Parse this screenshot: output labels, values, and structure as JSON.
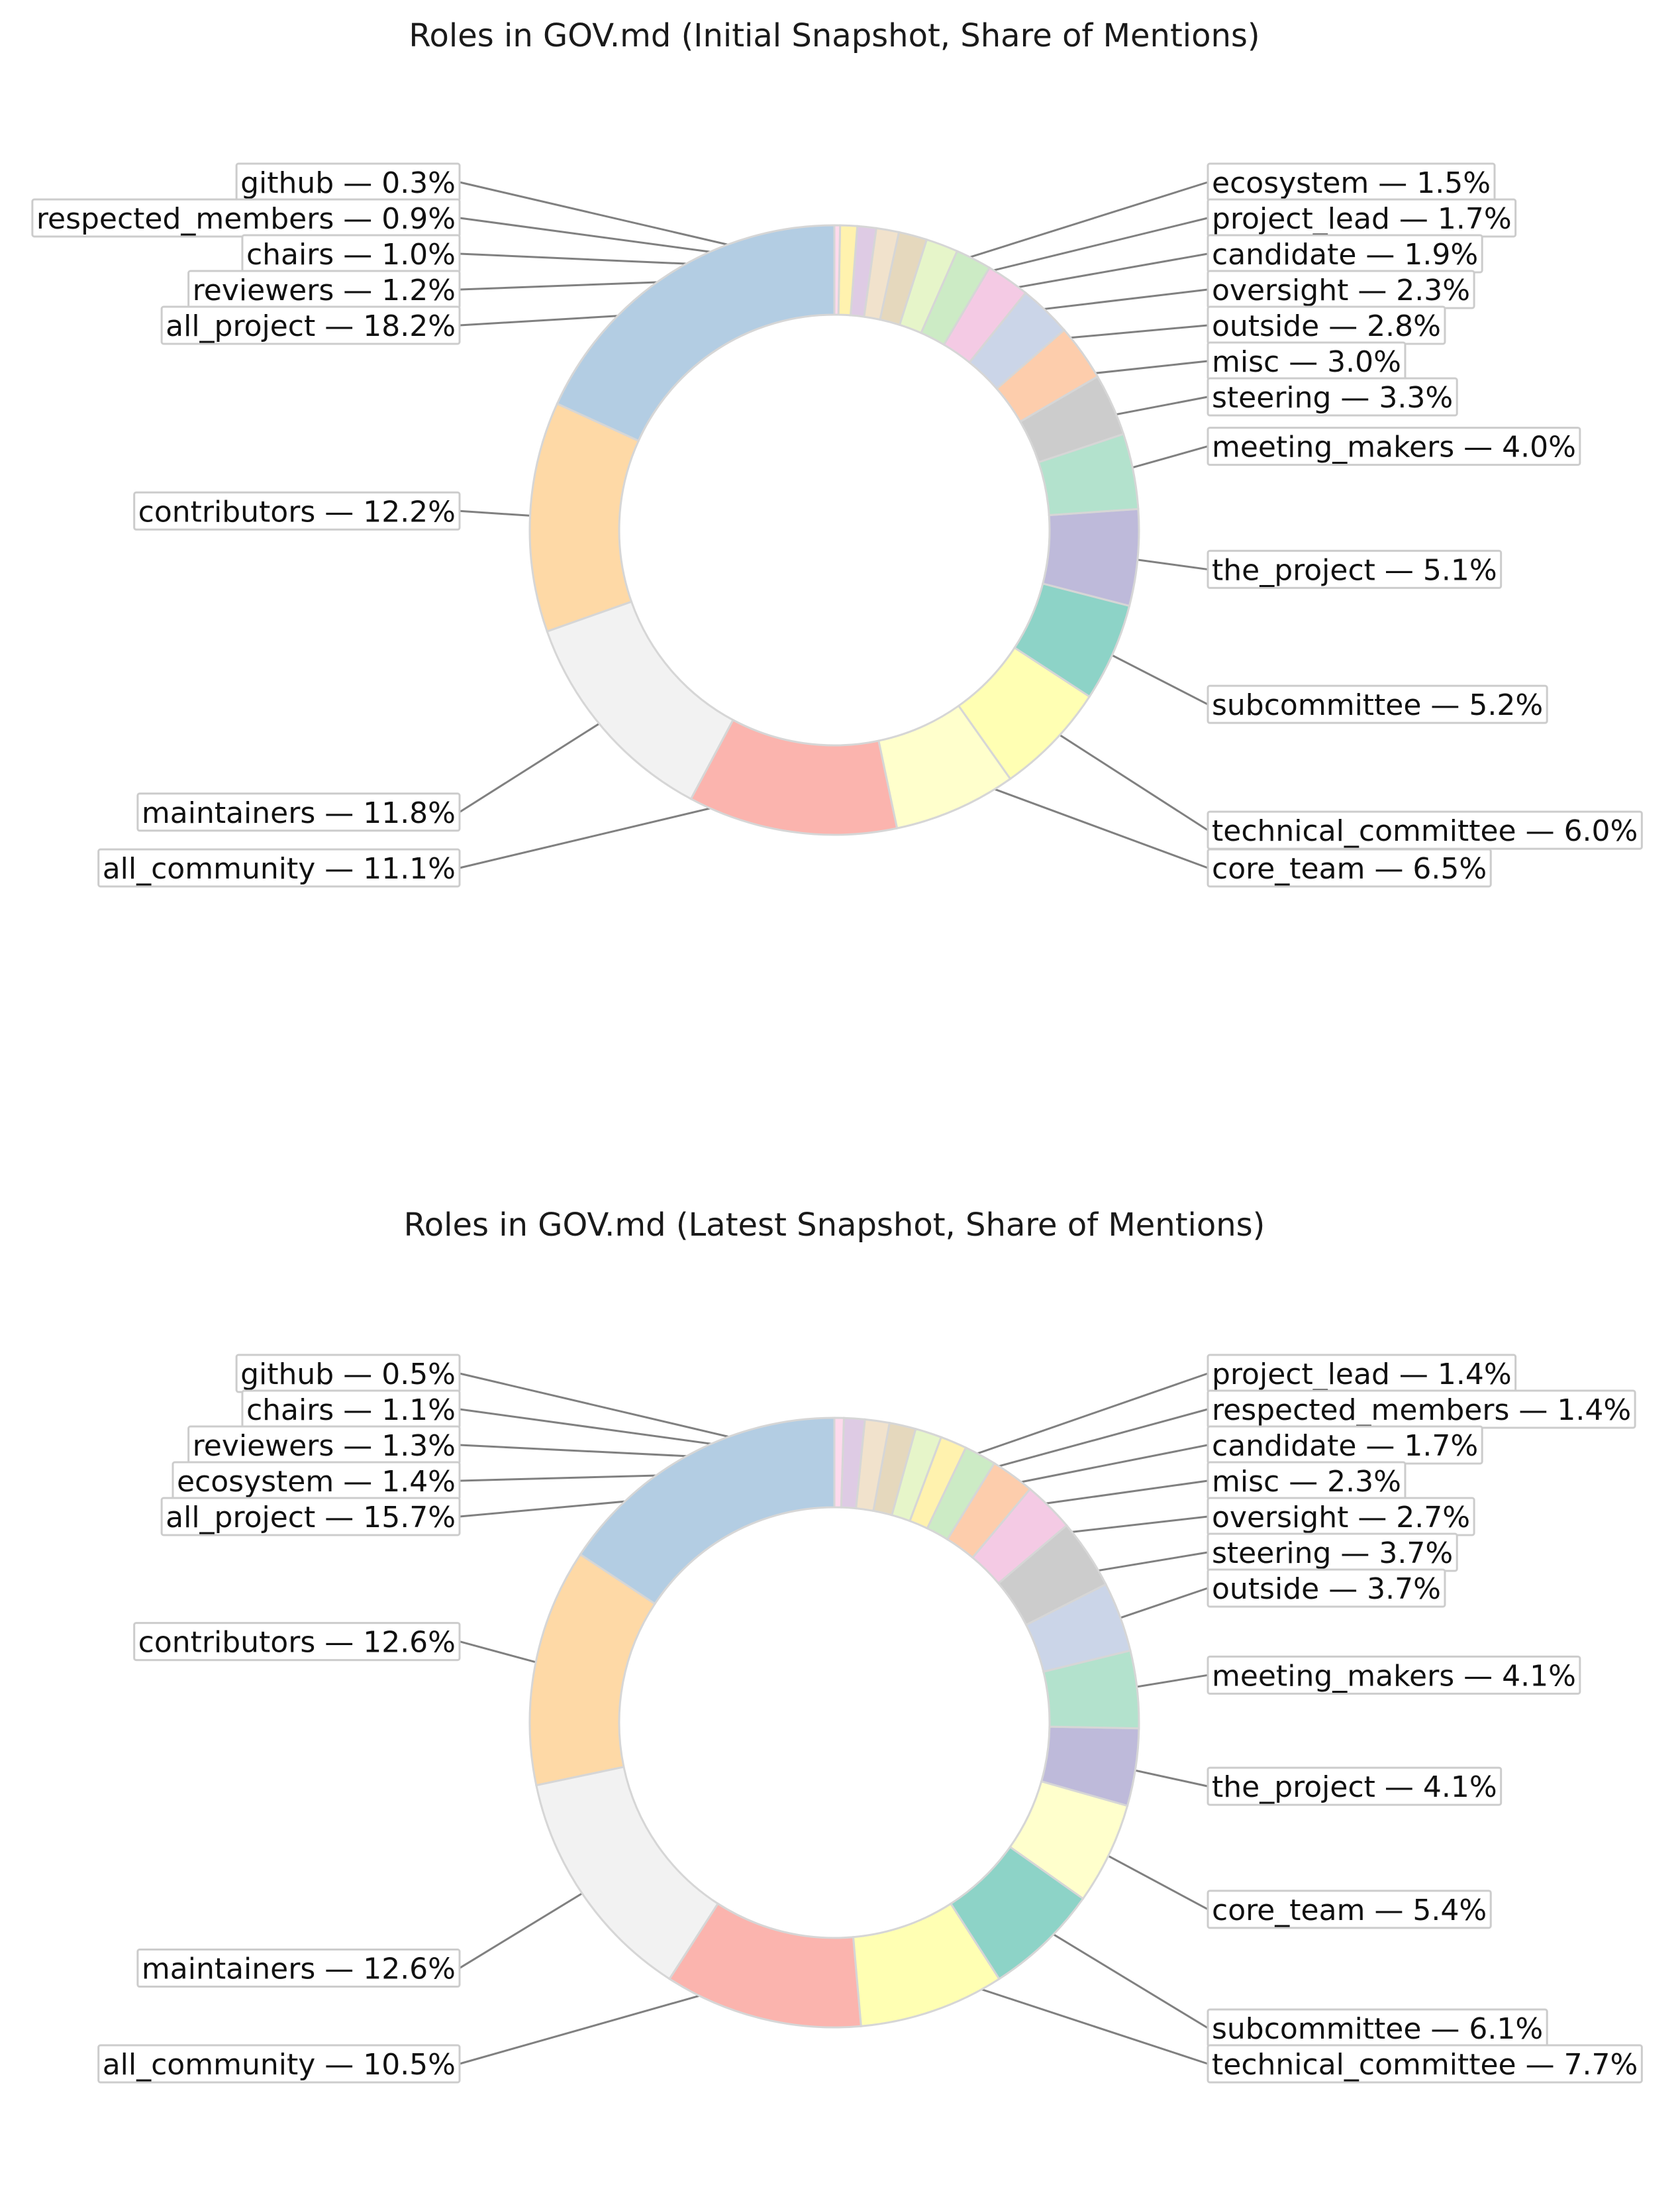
{
  "chart_data": [
    {
      "type": "donut",
      "title": "Roles in GOV.md (Initial Snapshot, Share of Mentions)",
      "slices": [
        {
          "label": "all_project",
          "value": 18.2,
          "text": "all_project — 18.2%",
          "color": "#B3CDE3",
          "side": "left"
        },
        {
          "label": "contributors",
          "value": 12.2,
          "text": "contributors — 12.2%",
          "color": "#FED9A6",
          "side": "left"
        },
        {
          "label": "maintainers",
          "value": 11.8,
          "text": "maintainers — 11.8%",
          "color": "#F2F2F2",
          "side": "left"
        },
        {
          "label": "all_community",
          "value": 11.1,
          "text": "all_community — 11.1%",
          "color": "#FBB4AE",
          "side": "left"
        },
        {
          "label": "core_team",
          "value": 6.5,
          "text": "core_team — 6.5%",
          "color": "#FFFFCC",
          "side": "right"
        },
        {
          "label": "technical_committee",
          "value": 6.0,
          "text": "technical_committee — 6.0%",
          "color": "#FFFFB3",
          "side": "right"
        },
        {
          "label": "subcommittee",
          "value": 5.2,
          "text": "subcommittee — 5.2%",
          "color": "#8DD3C7",
          "side": "right"
        },
        {
          "label": "the_project",
          "value": 5.1,
          "text": "the_project — 5.1%",
          "color": "#BEBADA",
          "side": "right"
        },
        {
          "label": "meeting_makers",
          "value": 4.0,
          "text": "meeting_makers — 4.0%",
          "color": "#B3E2CD",
          "side": "right"
        },
        {
          "label": "steering",
          "value": 3.3,
          "text": "steering — 3.3%",
          "color": "#CCCCCC",
          "side": "right"
        },
        {
          "label": "misc",
          "value": 3.0,
          "text": "misc — 3.0%",
          "color": "#FDCDAC",
          "side": "right"
        },
        {
          "label": "outside",
          "value": 2.8,
          "text": "outside — 2.8%",
          "color": "#CBD5E8",
          "side": "right"
        },
        {
          "label": "oversight",
          "value": 2.3,
          "text": "oversight — 2.3%",
          "color": "#F4CAE4",
          "side": "right"
        },
        {
          "label": "candidate",
          "value": 1.9,
          "text": "candidate — 1.9%",
          "color": "#CCEBC5",
          "side": "right"
        },
        {
          "label": "project_lead",
          "value": 1.7,
          "text": "project_lead — 1.7%",
          "color": "#E6F5C9",
          "side": "right"
        },
        {
          "label": "ecosystem",
          "value": 1.5,
          "text": "ecosystem — 1.5%",
          "color": "#E5D8BD",
          "side": "right"
        },
        {
          "label": "reviewers",
          "value": 1.2,
          "text": "reviewers — 1.2%",
          "color": "#F1E2CC",
          "side": "left"
        },
        {
          "label": "chairs",
          "value": 1.0,
          "text": "chairs — 1.0%",
          "color": "#DECBE4",
          "side": "left"
        },
        {
          "label": "respected_members",
          "value": 0.9,
          "text": "respected_members — 0.9%",
          "color": "#FFF2AE",
          "side": "left"
        },
        {
          "label": "github",
          "value": 0.3,
          "text": "github — 0.3%",
          "color": "#FDDAEC",
          "side": "left"
        }
      ]
    },
    {
      "type": "donut",
      "title": "Roles in GOV.md (Latest Snapshot, Share of Mentions)",
      "slices": [
        {
          "label": "all_project",
          "value": 15.7,
          "text": "all_project — 15.7%",
          "color": "#B3CDE3",
          "side": "left"
        },
        {
          "label": "contributors",
          "value": 12.6,
          "text": "contributors — 12.6%",
          "color": "#FED9A6",
          "side": "left"
        },
        {
          "label": "maintainers",
          "value": 12.6,
          "text": "maintainers — 12.6%",
          "color": "#F2F2F2",
          "side": "left"
        },
        {
          "label": "all_community",
          "value": 10.5,
          "text": "all_community — 10.5%",
          "color": "#FBB4AE",
          "side": "left"
        },
        {
          "label": "technical_committee",
          "value": 7.7,
          "text": "technical_committee — 7.7%",
          "color": "#FFFFB3",
          "side": "right"
        },
        {
          "label": "subcommittee",
          "value": 6.1,
          "text": "subcommittee — 6.1%",
          "color": "#8DD3C7",
          "side": "right"
        },
        {
          "label": "core_team",
          "value": 5.4,
          "text": "core_team — 5.4%",
          "color": "#FFFFCC",
          "side": "right"
        },
        {
          "label": "the_project",
          "value": 4.1,
          "text": "the_project — 4.1%",
          "color": "#BEBADA",
          "side": "right"
        },
        {
          "label": "meeting_makers",
          "value": 4.1,
          "text": "meeting_makers — 4.1%",
          "color": "#B3E2CD",
          "side": "right"
        },
        {
          "label": "outside",
          "value": 3.7,
          "text": "outside — 3.7%",
          "color": "#CBD5E8",
          "side": "right"
        },
        {
          "label": "steering",
          "value": 3.7,
          "text": "steering — 3.7%",
          "color": "#CCCCCC",
          "side": "right"
        },
        {
          "label": "oversight",
          "value": 2.7,
          "text": "oversight — 2.7%",
          "color": "#F4CAE4",
          "side": "right"
        },
        {
          "label": "misc",
          "value": 2.3,
          "text": "misc — 2.3%",
          "color": "#FDCDAC",
          "side": "right"
        },
        {
          "label": "candidate",
          "value": 1.7,
          "text": "candidate — 1.7%",
          "color": "#CCEBC5",
          "side": "right"
        },
        {
          "label": "respected_members",
          "value": 1.4,
          "text": "respected_members — 1.4%",
          "color": "#FFF2AE",
          "side": "right"
        },
        {
          "label": "project_lead",
          "value": 1.4,
          "text": "project_lead — 1.4%",
          "color": "#E6F5C9",
          "side": "right"
        },
        {
          "label": "ecosystem",
          "value": 1.4,
          "text": "ecosystem — 1.4%",
          "color": "#E5D8BD",
          "side": "left"
        },
        {
          "label": "reviewers",
          "value": 1.3,
          "text": "reviewers — 1.3%",
          "color": "#F1E2CC",
          "side": "left"
        },
        {
          "label": "chairs",
          "value": 1.1,
          "text": "chairs — 1.1%",
          "color": "#DECBE4",
          "side": "left"
        },
        {
          "label": "github",
          "value": 0.5,
          "text": "github — 0.5%",
          "color": "#FDDAEC",
          "side": "left"
        }
      ]
    }
  ]
}
